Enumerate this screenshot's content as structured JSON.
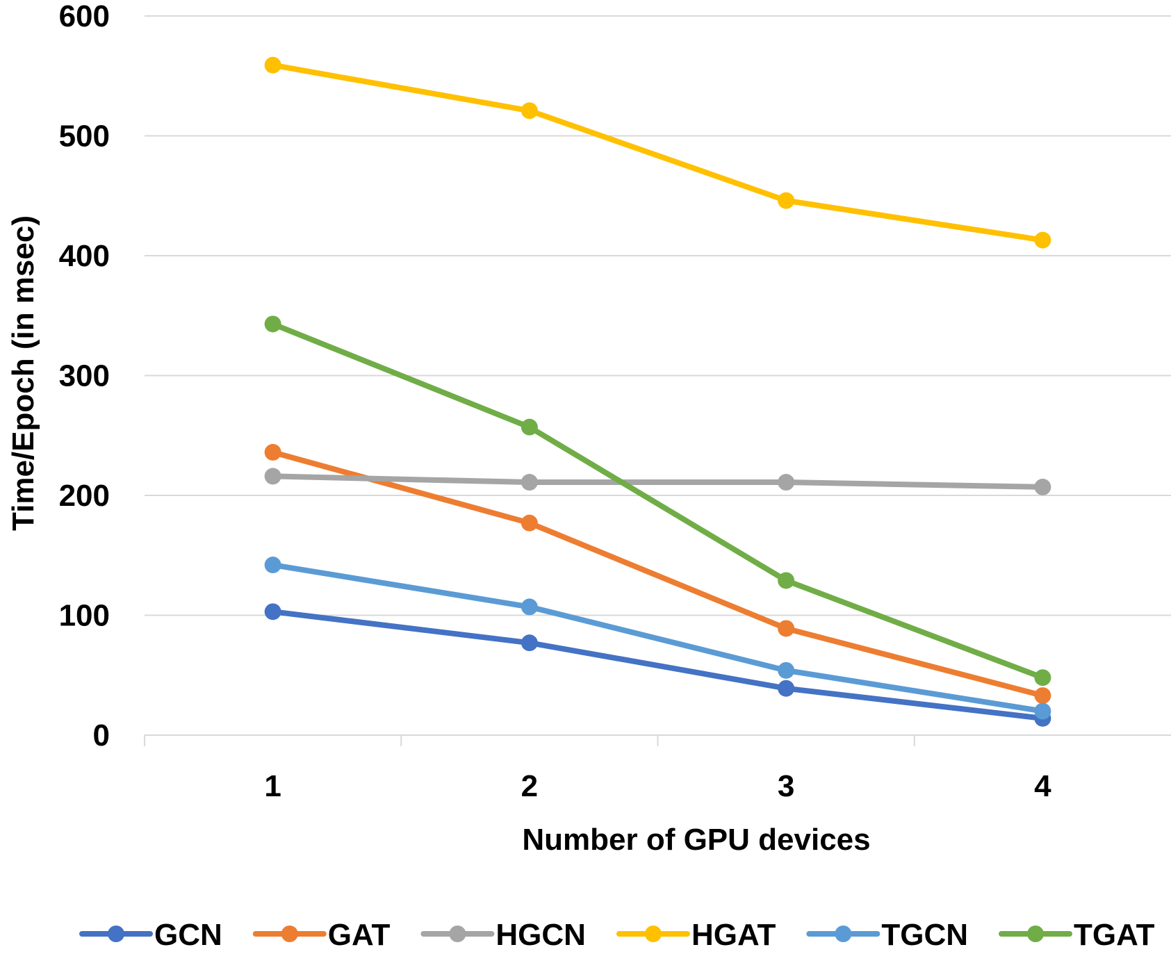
{
  "chart_data": {
    "type": "line",
    "title": "",
    "xlabel": "Number of GPU devices",
    "ylabel": "Time/Epoch (in msec)",
    "categories": [
      "1",
      "2",
      "3",
      "4"
    ],
    "ylim": [
      0,
      600
    ],
    "yticks": [
      "0",
      "100",
      "200",
      "300",
      "400",
      "500",
      "600"
    ],
    "grid": true,
    "legend_position": "bottom",
    "series": [
      {
        "name": "GCN",
        "color": "#4472c4",
        "values": [
          103,
          77,
          39,
          14
        ]
      },
      {
        "name": "GAT",
        "color": "#ed7d31",
        "values": [
          236,
          177,
          89,
          33
        ]
      },
      {
        "name": "HGCN",
        "color": "#a5a5a5",
        "values": [
          216,
          211,
          211,
          207
        ]
      },
      {
        "name": "HGAT",
        "color": "#ffc000",
        "values": [
          559,
          521,
          446,
          413
        ]
      },
      {
        "name": "TGCN",
        "color": "#5b9bd5",
        "values": [
          142,
          107,
          54,
          20
        ]
      },
      {
        "name": "TGAT",
        "color": "#70ad47",
        "values": [
          343,
          257,
          129,
          48
        ]
      }
    ]
  }
}
